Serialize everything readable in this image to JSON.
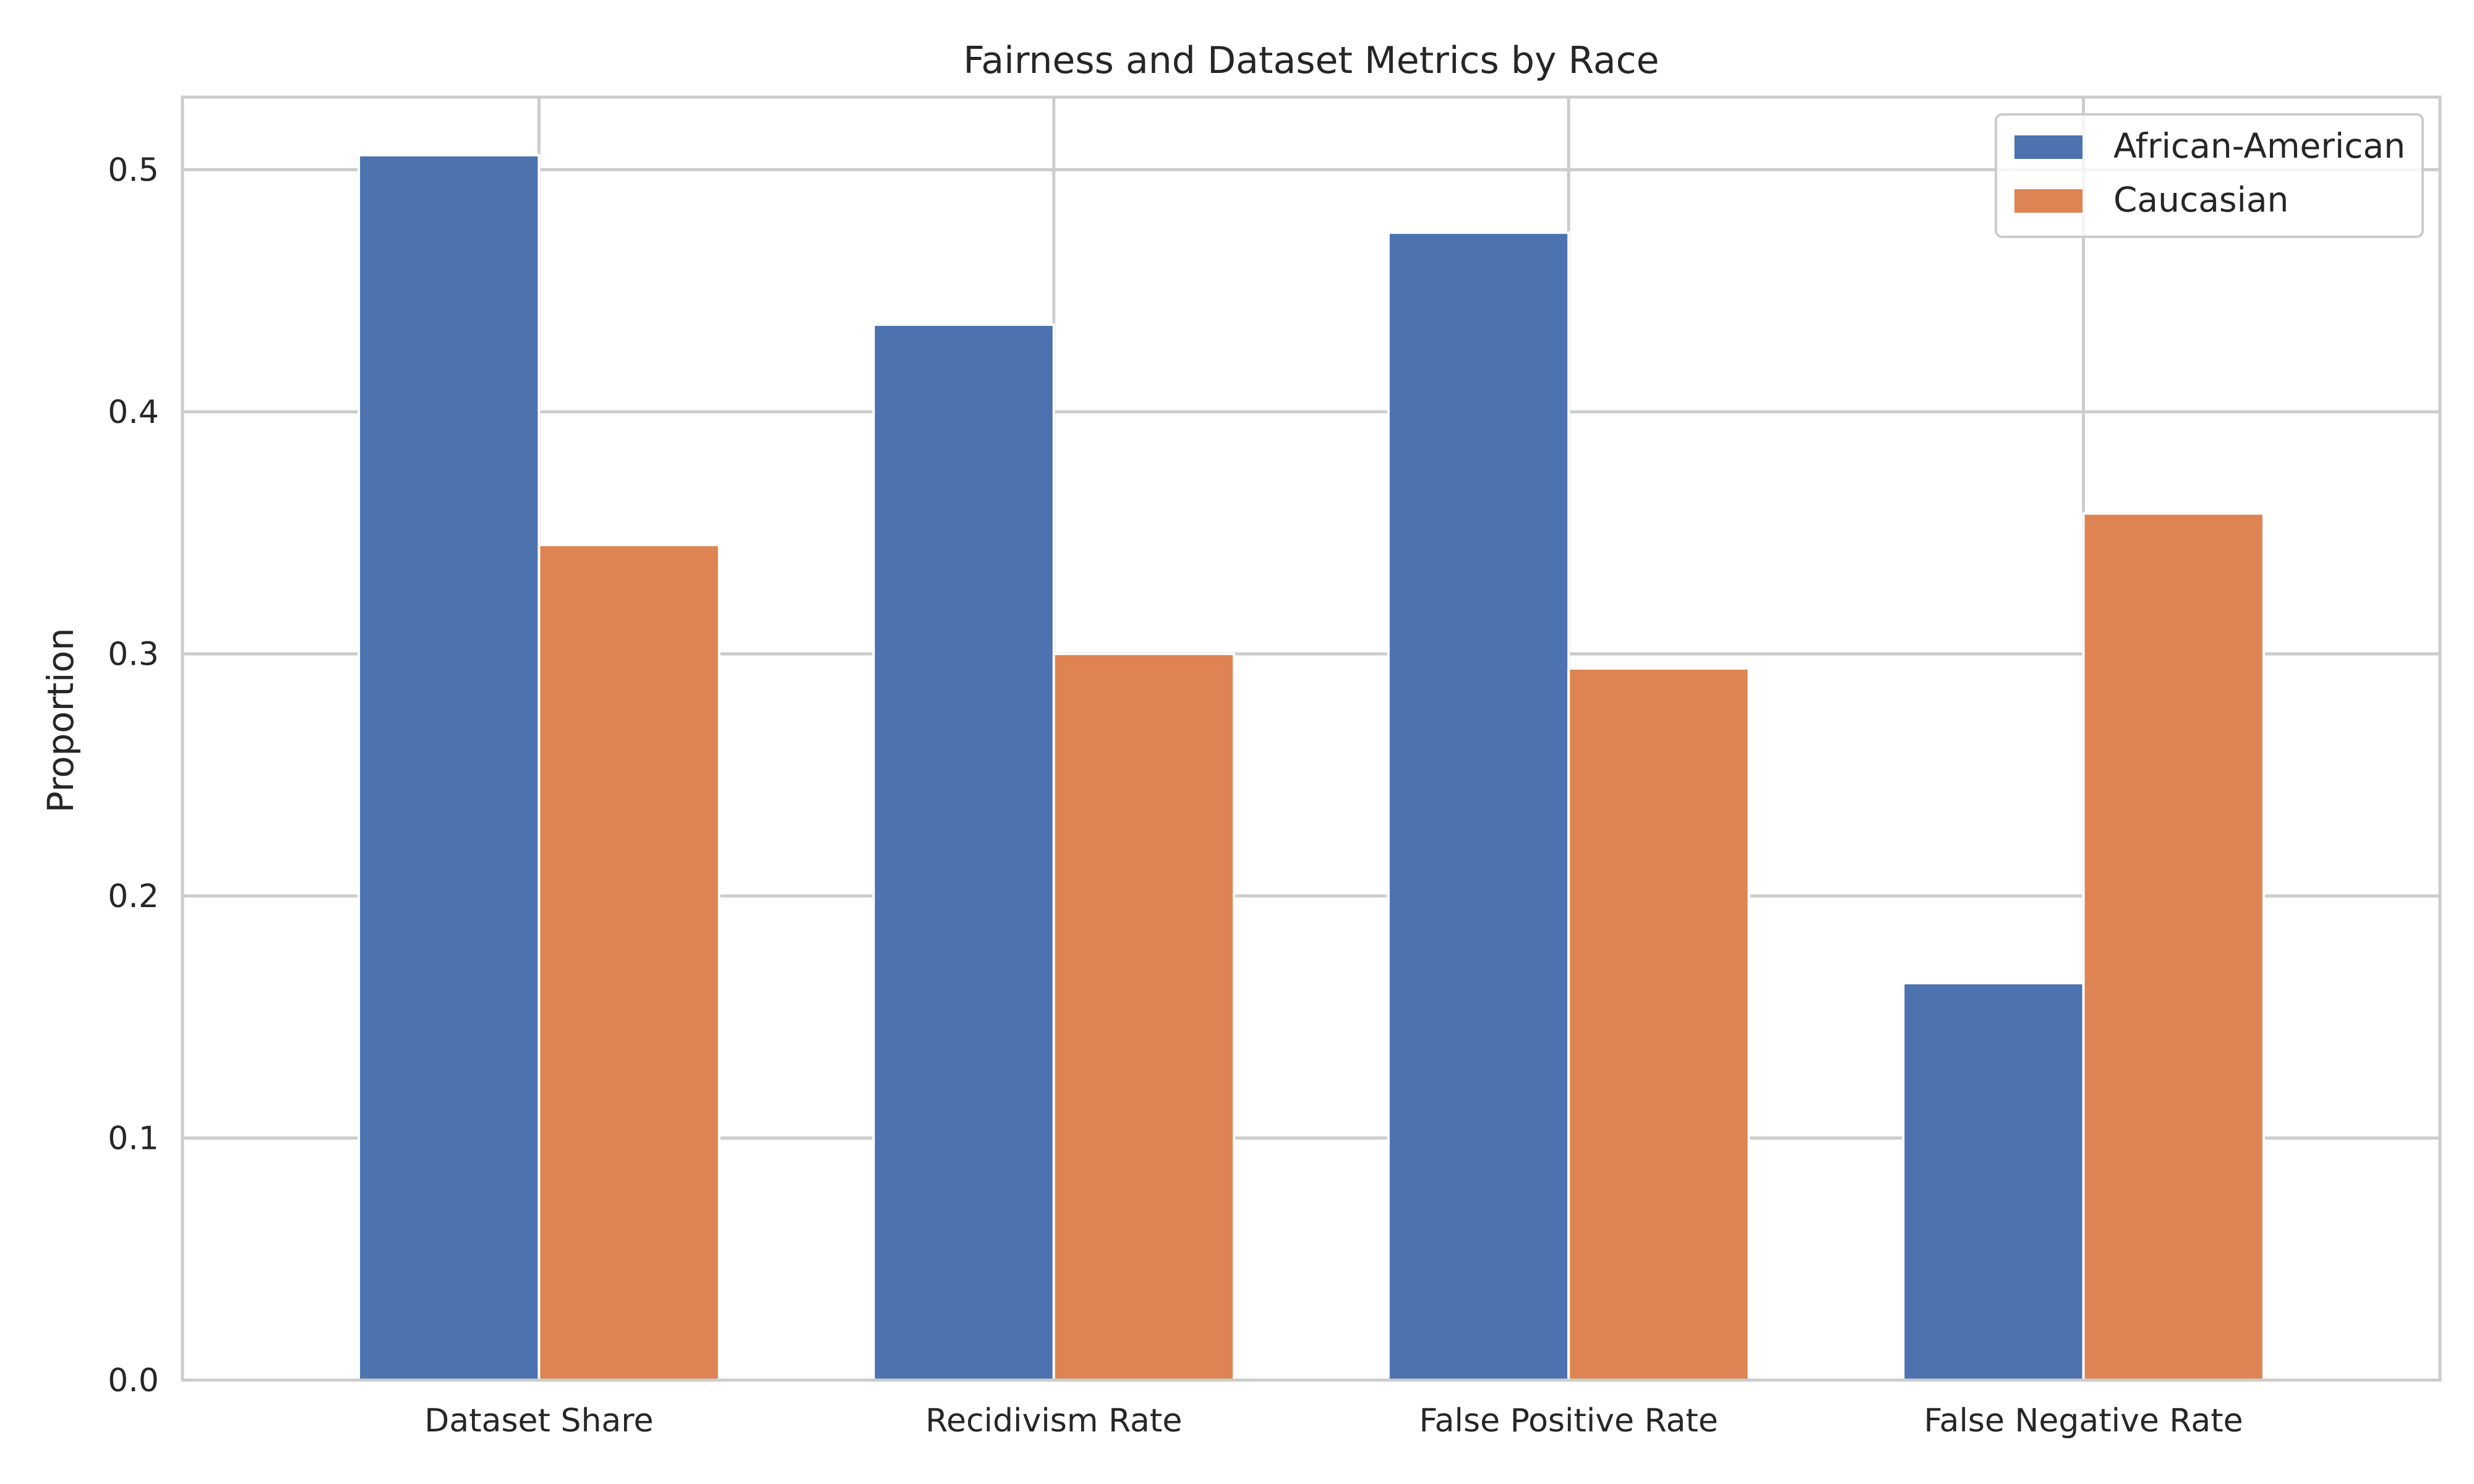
{
  "chart_data": {
    "type": "bar",
    "title": "Fairness and Dataset Metrics by Race",
    "xlabel": "",
    "ylabel": "Proportion",
    "categories": [
      "Dataset Share",
      "Recidivism Rate",
      "False Positive Rate",
      "False Negative Rate"
    ],
    "series": [
      {
        "name": "African-American",
        "color": "#4c72b0",
        "values": [
          0.506,
          0.436,
          0.474,
          0.164
        ]
      },
      {
        "name": "Caucasian",
        "color": "#dd8452",
        "values": [
          0.345,
          0.3,
          0.294,
          0.358
        ]
      }
    ],
    "ylim": [
      0,
      0.53
    ],
    "yticks": [
      "0.0",
      "0.1",
      "0.2",
      "0.3",
      "0.4",
      "0.5"
    ],
    "grid": true,
    "legend_position": "top-right"
  }
}
